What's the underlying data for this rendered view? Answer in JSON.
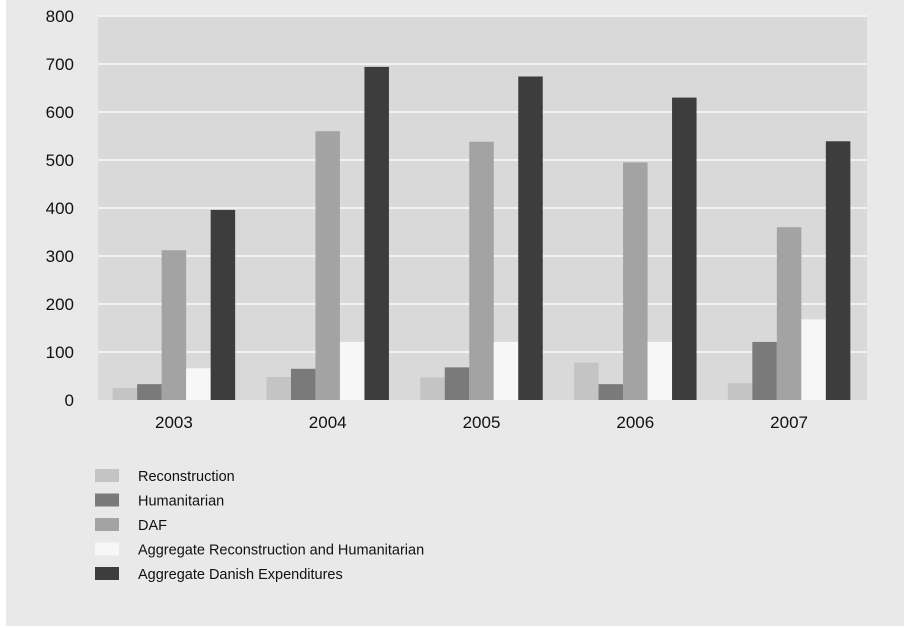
{
  "chart_data": {
    "type": "bar",
    "title": "",
    "xlabel": "",
    "ylabel": "",
    "categories": [
      "2003",
      "2004",
      "2005",
      "2006",
      "2007"
    ],
    "ylim": [
      0,
      800
    ],
    "yticks": [
      0,
      100,
      200,
      300,
      400,
      500,
      600,
      700,
      800
    ],
    "grid": true,
    "legend_position": "bottom-left",
    "series": [
      {
        "name": "Reconstruction",
        "color": "#c4c4c4",
        "values": [
          25,
          48,
          47,
          78,
          35
        ]
      },
      {
        "name": "Humanitarian",
        "color": "#7a7a7a",
        "values": [
          33,
          65,
          68,
          33,
          121
        ]
      },
      {
        "name": "DAF",
        "color": "#a3a3a3",
        "values": [
          312,
          560,
          538,
          495,
          360
        ]
      },
      {
        "name": "Aggregate Reconstruction and Humanitarian",
        "color": "#f7f7f7",
        "values": [
          66,
          121,
          121,
          121,
          168
        ]
      },
      {
        "name": "Aggregate Danish Expenditures",
        "color": "#3d3d3d",
        "values": [
          396,
          694,
          674,
          630,
          539
        ]
      }
    ]
  }
}
